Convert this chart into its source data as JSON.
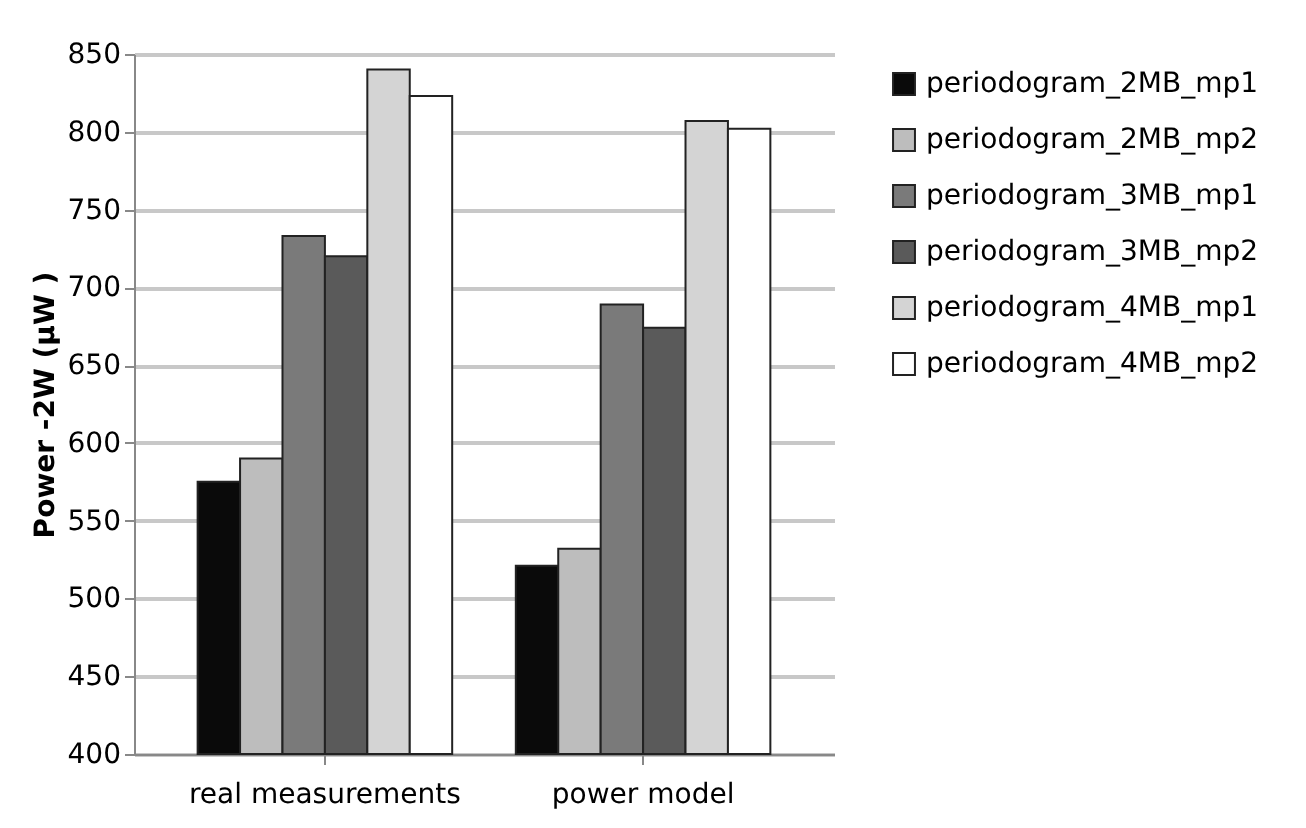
{
  "chart_data": {
    "type": "bar",
    "ylabel": "Power -2W (µW )",
    "categories": [
      "real measurements",
      "power model"
    ],
    "series": [
      {
        "name": "periodogram_2MB_mp1",
        "color": "#0a0a0a",
        "values": [
          575,
          521
        ]
      },
      {
        "name": "periodogram_2MB_mp2",
        "color": "#bdbdbd",
        "values": [
          590,
          532
        ]
      },
      {
        "name": "periodogram_3MB_mp1",
        "color": "#7a7a7a",
        "values": [
          733,
          689
        ]
      },
      {
        "name": "periodogram_3MB_mp2",
        "color": "#5a5a5a",
        "values": [
          720,
          674
        ]
      },
      {
        "name": "periodogram_4MB_mp1",
        "color": "#d4d4d4",
        "values": [
          840,
          807
        ]
      },
      {
        "name": "periodogram_4MB_mp2",
        "color": "#ffffff",
        "values": [
          823,
          802
        ]
      }
    ],
    "ylim": [
      400,
      850
    ],
    "yticks": [
      400,
      450,
      500,
      550,
      600,
      650,
      700,
      750,
      800,
      850
    ],
    "grid": "y",
    "legend": "right"
  }
}
